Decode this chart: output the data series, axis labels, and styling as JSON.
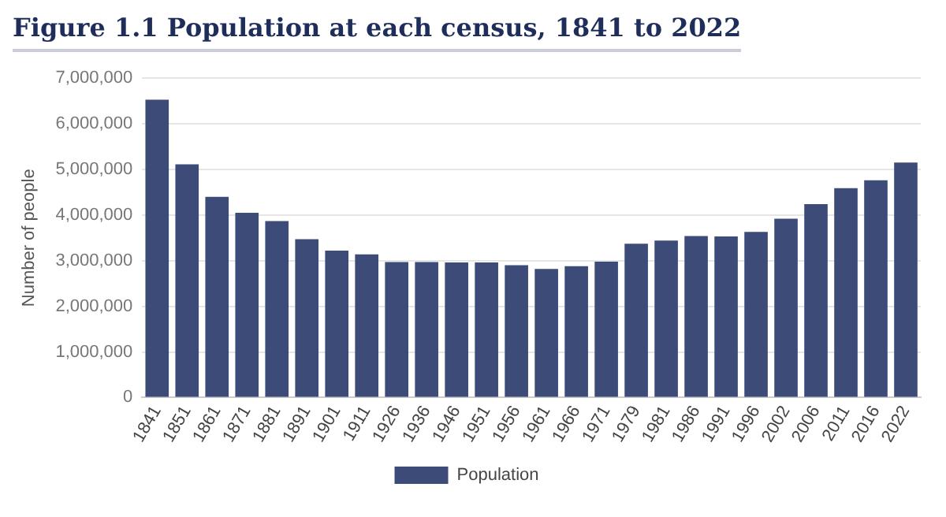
{
  "chart_data": {
    "type": "bar",
    "title": "Figure 1.1 Population at each census, 1841 to 2022",
    "ylabel": "Number of people",
    "categories": [
      "1841",
      "1851",
      "1861",
      "1871",
      "1881",
      "1891",
      "1901",
      "1911",
      "1926",
      "1936",
      "1946",
      "1951",
      "1956",
      "1961",
      "1966",
      "1971",
      "1979",
      "1981",
      "1986",
      "1991",
      "1996",
      "2002",
      "2006",
      "2011",
      "2016",
      "2022"
    ],
    "series": [
      {
        "name": "Population",
        "color": "#3d4b78",
        "values": [
          6530000,
          5110000,
          4400000,
          4050000,
          3870000,
          3470000,
          3220000,
          3140000,
          2970000,
          2970000,
          2960000,
          2960000,
          2900000,
          2820000,
          2880000,
          2980000,
          3370000,
          3440000,
          3540000,
          3530000,
          3630000,
          3920000,
          4240000,
          4590000,
          4760000,
          5150000
        ]
      }
    ],
    "ylim": [
      0,
      7000000
    ],
    "yticks": [
      {
        "value": 0,
        "label": "0"
      },
      {
        "value": 1000000,
        "label": "1,000,000"
      },
      {
        "value": 2000000,
        "label": "2,000,000"
      },
      {
        "value": 3000000,
        "label": "3,000,000"
      },
      {
        "value": 4000000,
        "label": "4,000,000"
      },
      {
        "value": 5000000,
        "label": "5,000,000"
      },
      {
        "value": 6000000,
        "label": "6,000,000"
      },
      {
        "value": 7000000,
        "label": "7,000,000"
      }
    ],
    "grid": "y",
    "legend": "bottom"
  }
}
